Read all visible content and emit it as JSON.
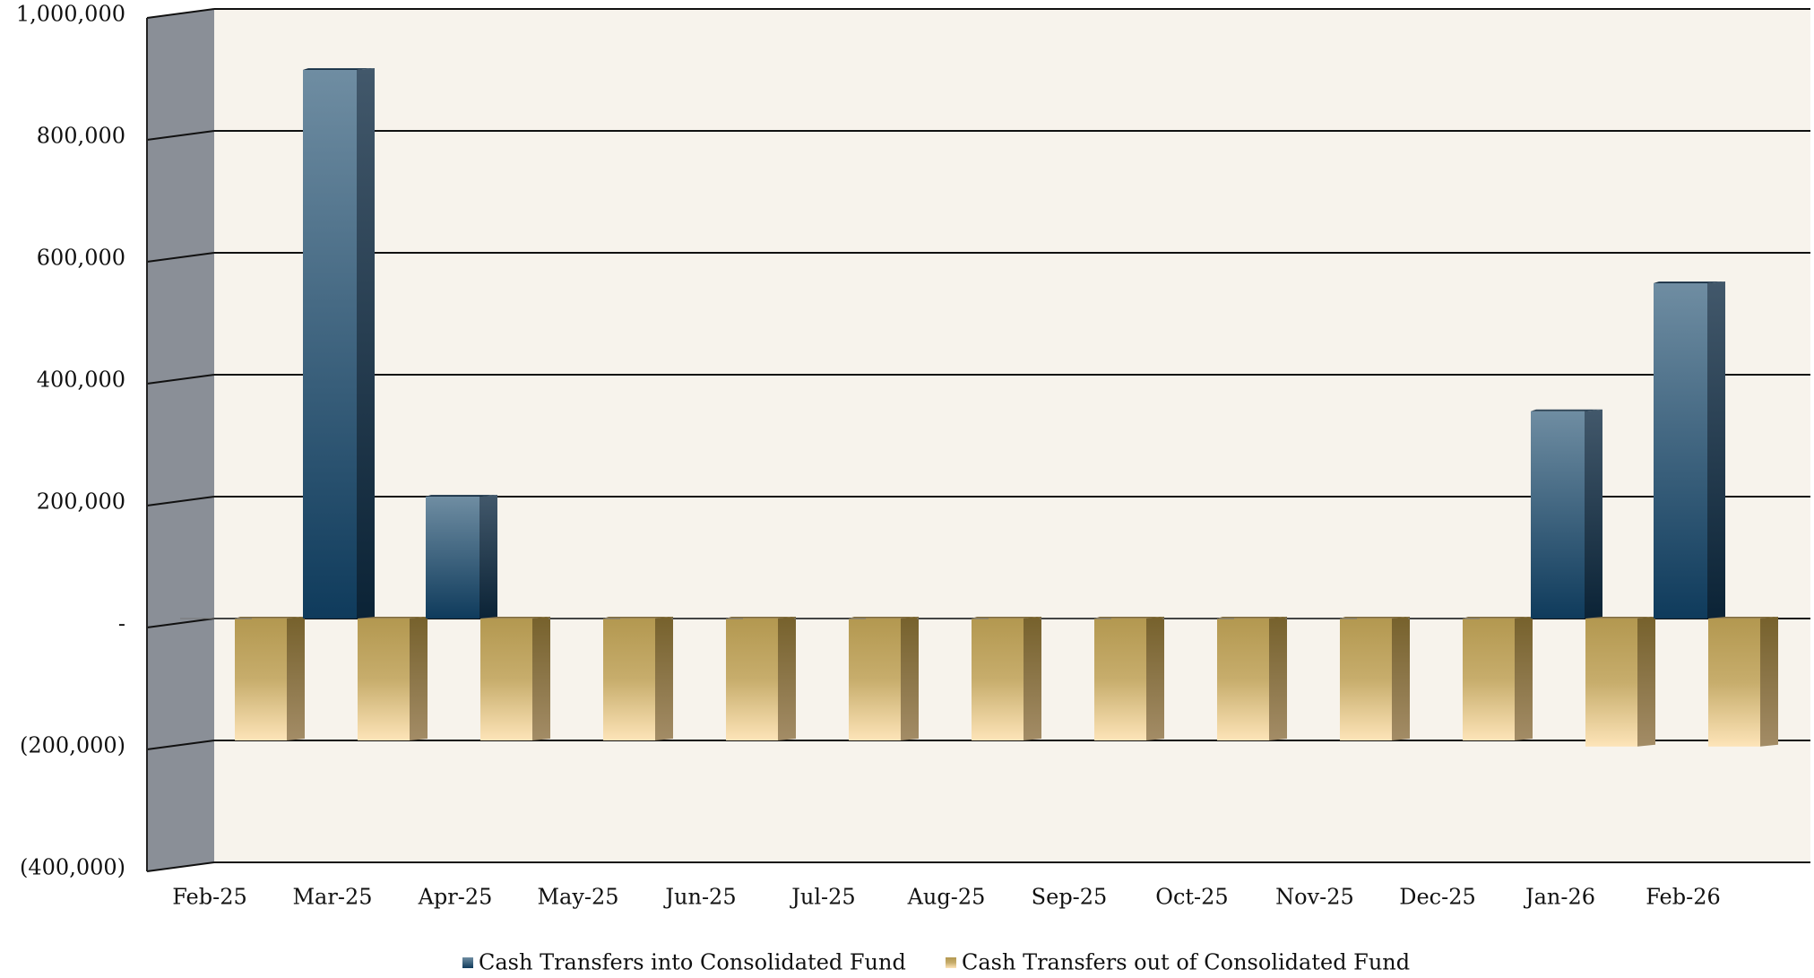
{
  "chart_data": {
    "type": "bar",
    "categories": [
      "Feb-25",
      "Mar-25",
      "Apr-25",
      "May-25",
      "Jun-25",
      "Jul-25",
      "Aug-25",
      "Sep-25",
      "Oct-25",
      "Nov-25",
      "Dec-25",
      "Jan-26",
      "Feb-26"
    ],
    "series": [
      {
        "name": "Cash Transfers into Consolidated Fund",
        "color": "#2c5577",
        "values": [
          0,
          900000,
          200000,
          0,
          0,
          0,
          0,
          0,
          0,
          0,
          0,
          340000,
          550000
        ]
      },
      {
        "name": "Cash Transfers out of Consolidated Fund",
        "color": "#b59a52",
        "values": [
          -200000,
          -200000,
          -200000,
          -200000,
          -200000,
          -200000,
          -200000,
          -200000,
          -200000,
          -200000,
          -200000,
          -210000,
          -210000
        ]
      }
    ],
    "ylim": [
      -400000,
      1000000
    ],
    "yticks": [
      {
        "value": -400000,
        "label": "(400,000)"
      },
      {
        "value": -200000,
        "label": "(200,000)"
      },
      {
        "value": 0,
        "label": "-"
      },
      {
        "value": 200000,
        "label": "200,000"
      },
      {
        "value": 400000,
        "label": "400,000"
      },
      {
        "value": 600000,
        "label": "600,000"
      },
      {
        "value": 800000,
        "label": "800,000"
      },
      {
        "value": 1000000,
        "label": "1,000,000"
      }
    ],
    "grid": true
  }
}
